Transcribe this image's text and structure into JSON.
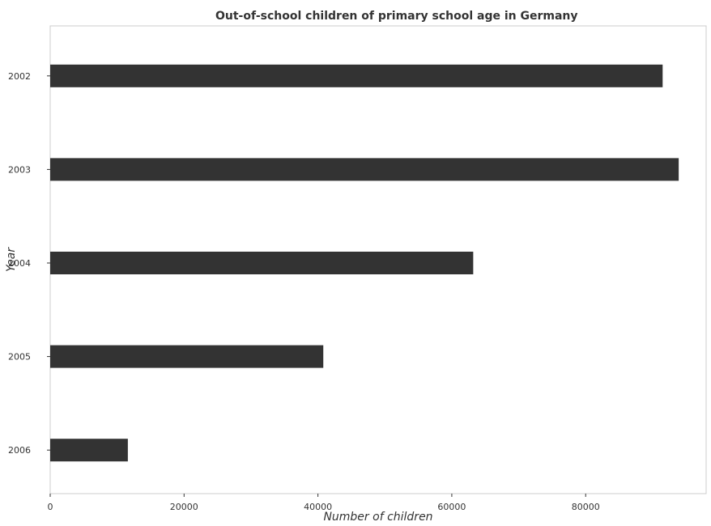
{
  "chart_data": {
    "type": "bar",
    "orientation": "horizontal",
    "title": "Out-of-school children of primary school age in Germany",
    "xlabel": "Number of children",
    "ylabel": "Year",
    "categories": [
      "2002",
      "2003",
      "2004",
      "2005",
      "2006"
    ],
    "values": [
      91500,
      93900,
      63200,
      40800,
      11600
    ],
    "xlim": [
      0,
      98000
    ],
    "xticks": [
      0,
      20000,
      40000,
      60000,
      80000
    ],
    "xtick_labels": [
      "0",
      "20000",
      "40000",
      "60000",
      "80000"
    ],
    "bar_color": "#333333",
    "grid": false,
    "legend": "none"
  }
}
